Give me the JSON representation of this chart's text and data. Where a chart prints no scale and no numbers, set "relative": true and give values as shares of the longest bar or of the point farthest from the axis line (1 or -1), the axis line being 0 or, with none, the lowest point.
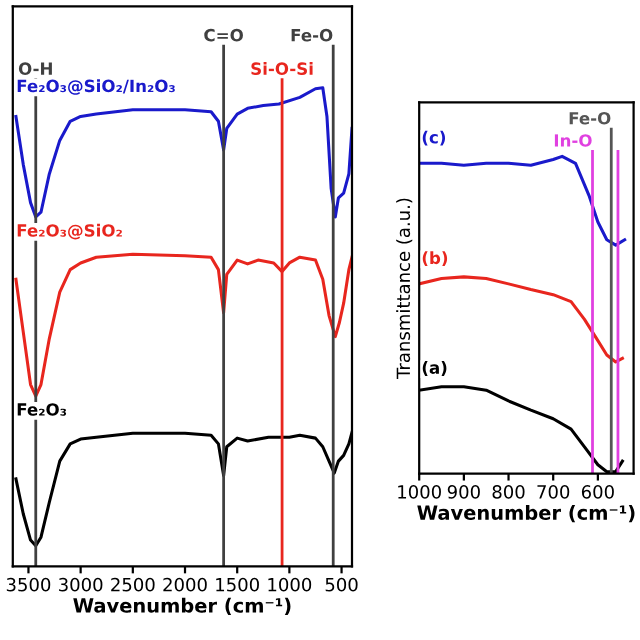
{
  "chart_data": [
    {
      "type": "line",
      "xlabel": "Wavenumber (cm⁻¹)",
      "relative": true,
      "xlim": [
        3650,
        400
      ],
      "xticks": [
        3500,
        3000,
        2500,
        2000,
        1500,
        1000,
        500
      ],
      "series": [
        {
          "name": "Fe₂O₃@SiO₂/In₂O₃",
          "color": "#1a1acb",
          "x": [
            3620,
            3550,
            3480,
            3430,
            3380,
            3300,
            3200,
            3100,
            3000,
            2850,
            2500,
            2000,
            1750,
            1680,
            1630,
            1600,
            1500,
            1400,
            1250,
            1100,
            900,
            750,
            680,
            640,
            600,
            560,
            530,
            480,
            430,
            400
          ],
          "values": [
            0.94,
            0.84,
            0.76,
            0.73,
            0.74,
            0.82,
            0.89,
            0.93,
            0.94,
            0.945,
            0.954,
            0.954,
            0.95,
            0.93,
            0.87,
            0.915,
            0.945,
            0.957,
            0.963,
            0.966,
            0.98,
            0.998,
            1.0,
            0.94,
            0.79,
            0.73,
            0.77,
            0.78,
            0.82,
            0.915
          ]
        },
        {
          "name": "Fe₂O₃@SiO₂",
          "color": "#e8261e",
          "x": [
            3620,
            3550,
            3480,
            3430,
            3380,
            3300,
            3200,
            3100,
            3000,
            2850,
            2500,
            2000,
            1750,
            1680,
            1630,
            1600,
            1500,
            1400,
            1300,
            1150,
            1070,
            1000,
            900,
            750,
            680,
            620,
            560,
            520,
            480,
            430,
            400
          ],
          "values": [
            0.6,
            0.49,
            0.38,
            0.356,
            0.38,
            0.476,
            0.573,
            0.62,
            0.634,
            0.646,
            0.652,
            0.649,
            0.646,
            0.62,
            0.53,
            0.61,
            0.64,
            0.632,
            0.64,
            0.634,
            0.616,
            0.634,
            0.646,
            0.64,
            0.6,
            0.524,
            0.48,
            0.51,
            0.55,
            0.62,
            0.646
          ]
        },
        {
          "name": "Fe₂O₃",
          "color": "#000000",
          "x": [
            3620,
            3550,
            3480,
            3430,
            3380,
            3300,
            3200,
            3100,
            3000,
            2850,
            2500,
            2000,
            1750,
            1680,
            1630,
            1600,
            1500,
            1400,
            1200,
            1000,
            900,
            750,
            680,
            620,
            570,
            530,
            480,
            430,
            400
          ],
          "values": [
            0.183,
            0.11,
            0.055,
            0.043,
            0.061,
            0.134,
            0.22,
            0.256,
            0.266,
            0.27,
            0.278,
            0.278,
            0.274,
            0.256,
            0.19,
            0.25,
            0.268,
            0.262,
            0.27,
            0.27,
            0.274,
            0.268,
            0.25,
            0.22,
            0.195,
            0.22,
            0.232,
            0.256,
            0.28
          ]
        }
      ],
      "ref_lines": [
        {
          "axis": "x",
          "value": 3430,
          "label": "O-H",
          "color": "#404040"
        },
        {
          "axis": "x",
          "value": 1630,
          "label": "C=O",
          "color": "#404040"
        },
        {
          "axis": "x",
          "value": 1070,
          "label": "Si-O-Si",
          "color": "#e8261e"
        },
        {
          "axis": "x",
          "value": 580,
          "label": "Fe-O",
          "color": "#404040"
        }
      ]
    },
    {
      "type": "line",
      "xlabel": "Wavenumber (cm⁻¹)",
      "ylabel": "Transmittance (a.u.)",
      "relative": true,
      "xlim": [
        1000,
        520
      ],
      "xticks": [
        1000,
        900,
        800,
        700,
        600
      ],
      "series": [
        {
          "name": "(c)",
          "color": "#1a1acb",
          "x": [
            1000,
            950,
            900,
            850,
            800,
            750,
            700,
            680,
            650,
            620,
            600,
            580,
            560,
            540
          ],
          "values": [
            0.978,
            0.978,
            0.972,
            0.978,
            0.978,
            0.972,
            0.99,
            1.0,
            0.978,
            0.877,
            0.793,
            0.737,
            0.72,
            0.737
          ]
        },
        {
          "name": "(b)",
          "color": "#e8261e",
          "x": [
            1000,
            950,
            900,
            850,
            800,
            750,
            700,
            660,
            630,
            600,
            580,
            560,
            545
          ],
          "values": [
            0.598,
            0.615,
            0.62,
            0.615,
            0.598,
            0.58,
            0.564,
            0.542,
            0.486,
            0.419,
            0.374,
            0.352,
            0.363
          ]
        },
        {
          "name": "(a)",
          "color": "#000000",
          "x": [
            1000,
            950,
            900,
            850,
            800,
            750,
            700,
            660,
            630,
            600,
            580,
            560,
            545
          ],
          "values": [
            0.263,
            0.274,
            0.274,
            0.263,
            0.229,
            0.2,
            0.173,
            0.14,
            0.084,
            0.028,
            0.006,
            0.006,
            0.039
          ]
        }
      ],
      "ref_lines": [
        {
          "axis": "x",
          "value": 612,
          "label": "In-O",
          "color": "#e040e0"
        },
        {
          "axis": "x",
          "value": 570,
          "label": "Fe-O",
          "color": "#555555"
        },
        {
          "axis": "x",
          "value": 555,
          "label": null,
          "color": "#e040e0"
        }
      ]
    }
  ]
}
